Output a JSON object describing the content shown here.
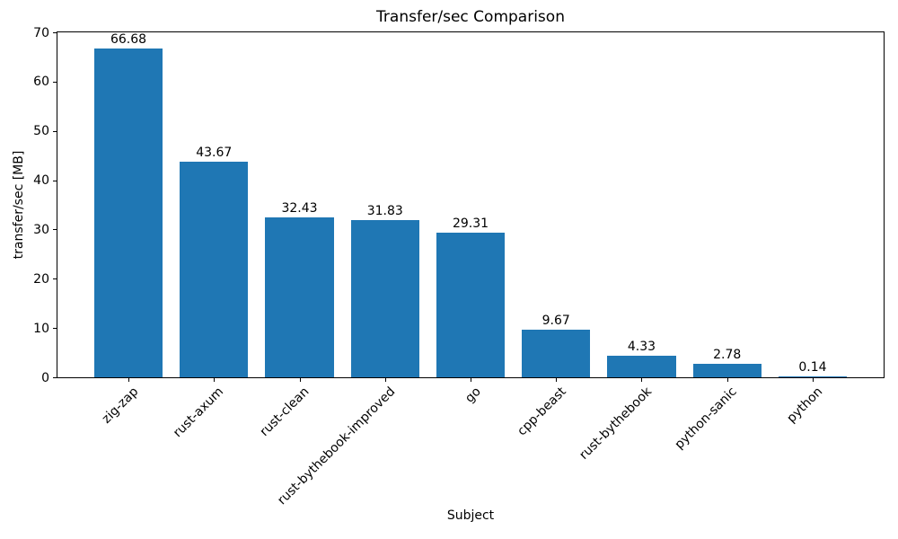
{
  "chart_data": {
    "type": "bar",
    "title": "Transfer/sec Comparison",
    "xlabel": "Subject",
    "ylabel": "transfer/sec [MB]",
    "categories": [
      "zig-zap",
      "rust-axum",
      "rust-clean",
      "rust-bythebook-improved",
      "go",
      "cpp-beast",
      "rust-bythebook",
      "python-sanic",
      "python"
    ],
    "values": [
      66.68,
      43.67,
      32.43,
      31.83,
      29.31,
      9.67,
      4.33,
      2.78,
      0.14
    ],
    "value_labels": [
      "66.68",
      "43.67",
      "32.43",
      "31.83",
      "29.31",
      "9.67",
      "4.33",
      "2.78",
      "0.14"
    ],
    "yticks": [
      0,
      10,
      20,
      30,
      40,
      50,
      60,
      70
    ],
    "ylim": [
      0,
      70
    ],
    "bar_color": "#1f77b4",
    "bar_width_fraction": 0.8,
    "grid": false,
    "legend": null,
    "x_tick_label_rotation_deg": 45
  }
}
